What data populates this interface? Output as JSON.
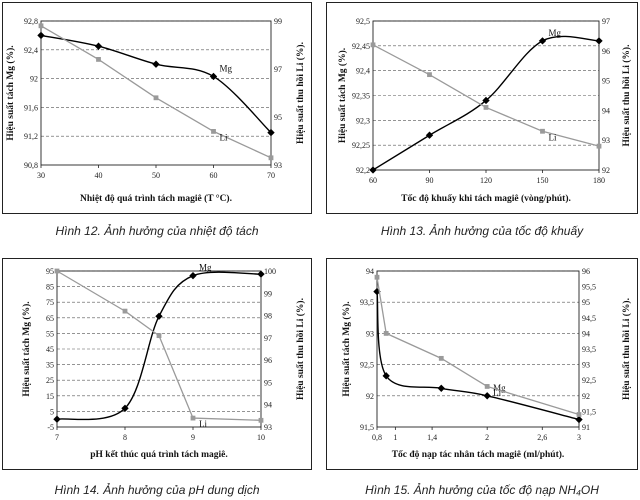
{
  "colors": {
    "mg": "#000000",
    "li": "#9a9a9a",
    "grid": "#555555"
  },
  "chart_data": [
    {
      "type": "line",
      "xlabel": "Nhiệt độ quá trình tách magiê (T °C).",
      "ylabel": "Hiệu suất tách Mg (%).",
      "y2label": "Hiệu suất thu hồi Li (%).",
      "x": [
        30,
        40,
        50,
        60,
        70
      ],
      "xlim": [
        30,
        70
      ],
      "xticks": [
        "30",
        "40",
        "50",
        "60",
        "70"
      ],
      "ylim": [
        90.8,
        92.8
      ],
      "yticks": [
        "90,8",
        "91,2",
        "91,6",
        "92",
        "92,4",
        "92,8"
      ],
      "y2lim": [
        93,
        99
      ],
      "y2ticks": [
        "93",
        "95",
        "97",
        "99"
      ],
      "grid": true,
      "series": [
        {
          "name": "Mg",
          "axis": "left",
          "smooth": true,
          "values": [
            92.6,
            92.45,
            92.2,
            92.03,
            91.25
          ]
        },
        {
          "name": "Li",
          "axis": "right",
          "smooth": false,
          "values": [
            98.8,
            97.4,
            95.8,
            94.4,
            93.3
          ]
        }
      ],
      "caption": "Hình 12. Ảnh hưởng của nhiệt độ tách"
    },
    {
      "type": "line",
      "xlabel": "Tốc độ khuấy khi tách magiê (vòng/phút).",
      "ylabel": "Hiệu suất tách Mg (%).",
      "y2label": "Hiệu suất thu hồi Li (%).",
      "x": [
        60,
        90,
        120,
        150,
        180
      ],
      "xlim": [
        60,
        180
      ],
      "xticks": [
        "60",
        "90",
        "120",
        "150",
        "180"
      ],
      "ylim": [
        92.2,
        92.5
      ],
      "yticks": [
        "92,2",
        "92,25",
        "92,3",
        "92,35",
        "92,4",
        "92,45",
        "92,5"
      ],
      "y2lim": [
        92,
        97
      ],
      "y2ticks": [
        "92",
        "93",
        "94",
        "95",
        "96",
        "97"
      ],
      "grid": true,
      "series": [
        {
          "name": "Mg",
          "axis": "left",
          "smooth": true,
          "values": [
            92.2,
            92.27,
            92.34,
            92.46,
            92.46
          ]
        },
        {
          "name": "Li",
          "axis": "right",
          "smooth": false,
          "values": [
            96.2,
            95.2,
            94.1,
            93.3,
            92.8
          ]
        }
      ],
      "caption": "Hình 13. Ảnh hưởng của tốc độ khuấy"
    },
    {
      "type": "line",
      "xlabel": "pH kết thúc quá trình tách magiê.",
      "ylabel": "Hiệu suất tách Mg (%).",
      "y2label": "Hiệu suất thu hồi Li (%).",
      "x": [
        7,
        8,
        8.5,
        9,
        10
      ],
      "xlim": [
        7,
        10
      ],
      "xticks": [
        "7",
        "8",
        "9",
        "10"
      ],
      "ylim": [
        -5,
        95
      ],
      "yticks": [
        "-5",
        "5",
        "15",
        "25",
        "35",
        "45",
        "55",
        "65",
        "75",
        "85",
        "95"
      ],
      "y2lim": [
        93,
        100
      ],
      "y2ticks": [
        "93",
        "94",
        "95",
        "96",
        "97",
        "98",
        "99",
        "100"
      ],
      "grid": true,
      "series": [
        {
          "name": "Mg",
          "axis": "left",
          "smooth": true,
          "values": [
            0,
            7,
            66,
            92,
            93
          ]
        },
        {
          "name": "Li",
          "axis": "right",
          "smooth": false,
          "values": [
            100,
            98.2,
            97.1,
            93.4,
            93.3
          ]
        }
      ],
      "caption": "Hình 14. Ảnh hưởng của pH dung dịch"
    },
    {
      "type": "line",
      "xlabel": "Tốc độ nạp tác nhân tách magiê (ml/phút).",
      "ylabel": "Hiệu suất tách Mg (%).",
      "y2label": "Hiệu suất thu hồi Li (%).",
      "x": [
        0.8,
        0.9,
        1.5,
        2.0,
        3.0
      ],
      "xlim": [
        0.8,
        3.0
      ],
      "xticks": [
        "0,8",
        "1",
        "1,4",
        "2",
        "2,6",
        "3"
      ],
      "xtick_values": [
        0.8,
        1.0,
        1.4,
        2.0,
        2.6,
        3.0
      ],
      "ylim": [
        91.5,
        94
      ],
      "yticks": [
        "91,5",
        "92",
        "92,5",
        "93",
        "93,5",
        "94"
      ],
      "y2lim": [
        91,
        96
      ],
      "y2ticks": [
        "91",
        "91,5",
        "92",
        "92,5",
        "93",
        "93,5",
        "94",
        "94,5",
        "95",
        "95,5",
        "96"
      ],
      "grid": true,
      "series": [
        {
          "name": "Mg",
          "axis": "left",
          "smooth": true,
          "values": [
            93.67,
            92.32,
            92.12,
            92.0,
            91.62
          ]
        },
        {
          "name": "Li",
          "axis": "right",
          "smooth": false,
          "values": [
            95.8,
            94.0,
            93.2,
            92.3,
            91.4
          ]
        }
      ],
      "caption": "Hình 15. Ảnh hưởng của tốc độ nạp NH₄OH"
    }
  ]
}
